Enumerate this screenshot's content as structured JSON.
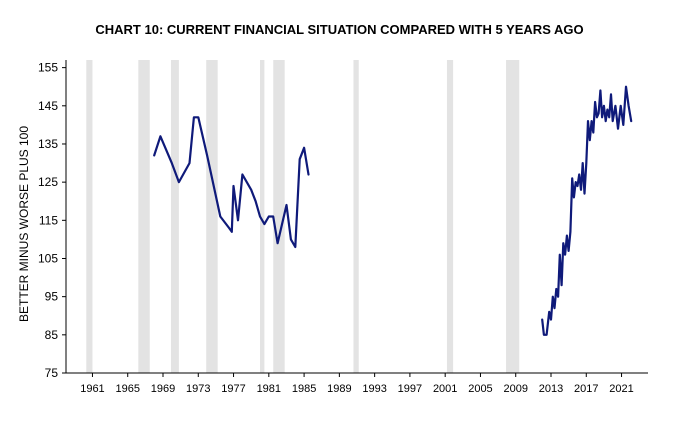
{
  "chart_data": {
    "type": "line",
    "title": "CHART 10: CURRENT FINANCIAL SITUATION COMPARED WITH 5 YEARS AGO",
    "ylabel": "BETTER MINUS WORSE PLUS 100",
    "xlabel": "",
    "ylim": [
      75,
      157
    ],
    "xlim": [
      1958,
      2024
    ],
    "yticks": [
      75,
      85,
      95,
      105,
      115,
      125,
      135,
      145,
      155
    ],
    "xticks": [
      "1961",
      "1965",
      "1969",
      "1973",
      "1977",
      "1981",
      "1985",
      "1989",
      "1993",
      "1997",
      "2001",
      "2005",
      "2009",
      "2013",
      "2017",
      "2021"
    ],
    "grid": false,
    "line_color": "#0f1a7a",
    "recession_color": "#e3e3e3",
    "recessions": [
      [
        1960.3,
        1961.0
      ],
      [
        1966.2,
        1967.5
      ],
      [
        1969.9,
        1970.8
      ],
      [
        1973.9,
        1975.2
      ],
      [
        1980.0,
        1980.5
      ],
      [
        1981.5,
        1982.8
      ],
      [
        1990.6,
        1991.2
      ],
      [
        2001.2,
        2001.9
      ],
      [
        2007.9,
        2009.4
      ]
    ],
    "series": [
      {
        "segments": [
          {
            "x": [
              1968.0,
              1968.7,
              1970.0,
              1970.8,
              1972.0,
              1972.5,
              1973.0,
              1974.0,
              1975.5,
              1976.5,
              1976.8,
              1977.0,
              1977.5,
              1978.0,
              1979.0,
              1979.5,
              1980.0,
              1980.5,
              1981.0,
              1981.5,
              1982.0,
              1983.0,
              1983.5,
              1984.0,
              1984.5,
              1985.0,
              1985.5
            ],
            "y": [
              132,
              137,
              130,
              125,
              130,
              142,
              142,
              132,
              116,
              113,
              112,
              124,
              115,
              127,
              123,
              120,
              116,
              114,
              116,
              116,
              109,
              119,
              110,
              108,
              131,
              134,
              127
            ]
          },
          {
            "x": [
              2012.0,
              2012.2,
              2012.5,
              2012.8,
              2013.0,
              2013.2,
              2013.4,
              2013.6,
              2013.8,
              2014.0,
              2014.2,
              2014.4,
              2014.6,
              2014.8,
              2015.0,
              2015.2,
              2015.4,
              2015.6,
              2015.8,
              2016.0,
              2016.2,
              2016.4,
              2016.6,
              2016.8,
              2017.0,
              2017.2,
              2017.4,
              2017.6,
              2017.8,
              2018.0,
              2018.2,
              2018.4,
              2018.6,
              2018.8,
              2019.0,
              2019.2,
              2019.4,
              2019.6,
              2019.8,
              2020.0,
              2020.3,
              2020.6,
              2020.9,
              2021.2,
              2021.5,
              2021.8,
              2022.1
            ],
            "y": [
              89,
              85,
              85,
              91,
              89,
              95,
              92,
              97,
              95,
              106,
              98,
              109,
              106,
              111,
              107,
              112,
              126,
              121,
              125,
              124,
              127,
              123,
              130,
              122,
              130,
              141,
              136,
              141,
              138,
              146,
              142,
              143,
              149,
              142,
              145,
              141,
              144,
              142,
              148,
              141,
              145,
              139,
              145,
              140,
              150,
              145,
              141
            ]
          }
        ]
      }
    ]
  }
}
